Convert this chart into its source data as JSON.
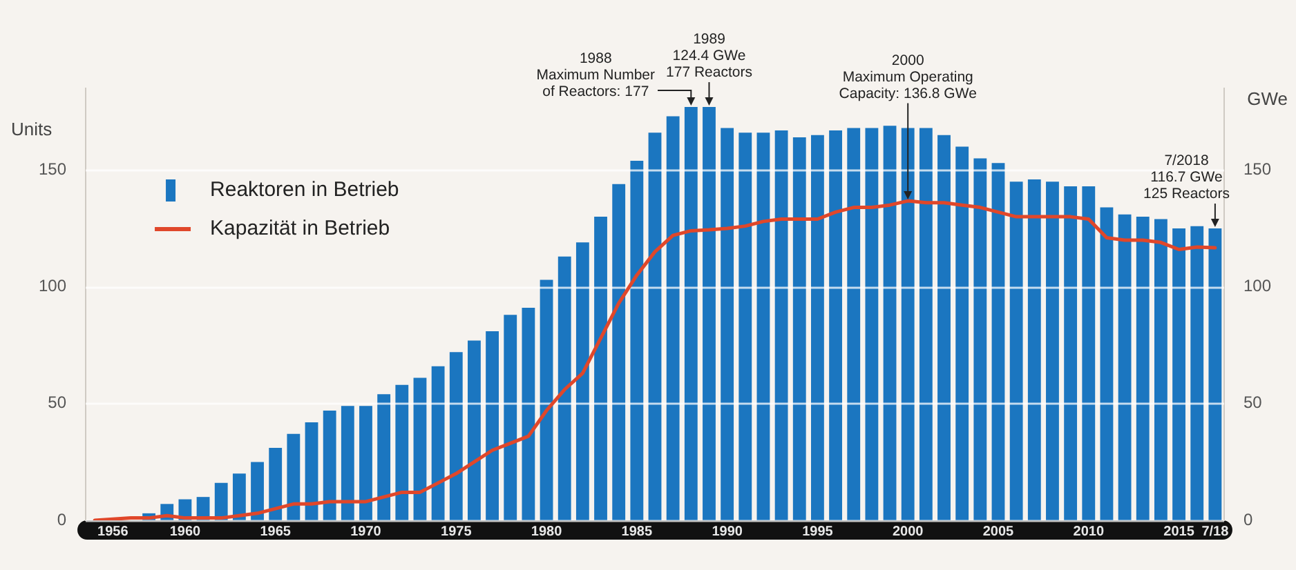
{
  "chart_data": {
    "type": "bar",
    "categories": [
      null,
      "1956",
      null,
      null,
      null,
      "1960",
      null,
      null,
      null,
      null,
      "1965",
      null,
      null,
      null,
      null,
      "1970",
      null,
      null,
      null,
      null,
      "1975",
      null,
      null,
      null,
      null,
      "1980",
      null,
      null,
      null,
      null,
      "1985",
      null,
      null,
      null,
      null,
      "1990",
      null,
      null,
      null,
      null,
      "1995",
      null,
      null,
      null,
      null,
      "2000",
      null,
      null,
      null,
      null,
      "2005",
      null,
      null,
      null,
      null,
      "2010",
      null,
      null,
      null,
      null,
      "2015",
      null,
      "7/18"
    ],
    "series": [
      {
        "name": "Reaktoren in Betrieb",
        "color": "#1b76c0",
        "values": [
          0,
          null,
          null,
          3,
          7,
          9,
          10,
          16,
          20,
          25,
          31,
          37,
          42,
          47,
          49,
          49,
          54,
          58,
          61,
          66,
          72,
          77,
          81,
          88,
          91,
          103,
          113,
          119,
          130,
          144,
          154,
          166,
          173,
          177,
          177,
          168,
          166,
          166,
          167,
          164,
          165,
          167,
          168,
          168,
          169,
          168,
          168,
          165,
          160,
          155,
          153,
          145,
          146,
          145,
          143,
          143,
          134,
          131,
          130,
          129,
          125,
          126,
          125
        ]
      },
      {
        "name": "Kapazität in Betrieb",
        "type": "line",
        "axis": "y2",
        "color": "#e0472a",
        "values": [
          0,
          0.5,
          1,
          1,
          2,
          1,
          1,
          1,
          2,
          3,
          5,
          7,
          7,
          8,
          8,
          8,
          10,
          12,
          12,
          16,
          20,
          25,
          30,
          33,
          36,
          47,
          56,
          63,
          78,
          93,
          105,
          115,
          122,
          124,
          124.4,
          125,
          126,
          128,
          129,
          129,
          129,
          132,
          134,
          134,
          135,
          136.8,
          136,
          136,
          135,
          134,
          132,
          130,
          130,
          130,
          130,
          129,
          121,
          120,
          120,
          119,
          116,
          117,
          116.7
        ]
      }
    ],
    "ylabel": "Units",
    "y2label": "GWe",
    "ylim": [
      0,
      185
    ],
    "yticks": [
      0,
      50,
      100,
      150
    ],
    "y2lim": [
      0,
      185
    ],
    "y2ticks": [
      0,
      50,
      100,
      150
    ],
    "grid": "y",
    "legend": "top left",
    "marker": "none",
    "annotations": [
      "1988\nMaximum Number\nof Reactors: 177",
      {
        "text": "1989\n124.4 GWe\n177 Reactors",
        "y": 177
      },
      {
        "text": "2000\nMaximum Operating\nCapacity: 136.8 GWe",
        "x": "2000",
        "y": 136.8
      },
      {
        "text": "7/2018\n116.7 GWe\n125 Reactors",
        "x": "7/18",
        "y": 125
      }
    ]
  }
}
